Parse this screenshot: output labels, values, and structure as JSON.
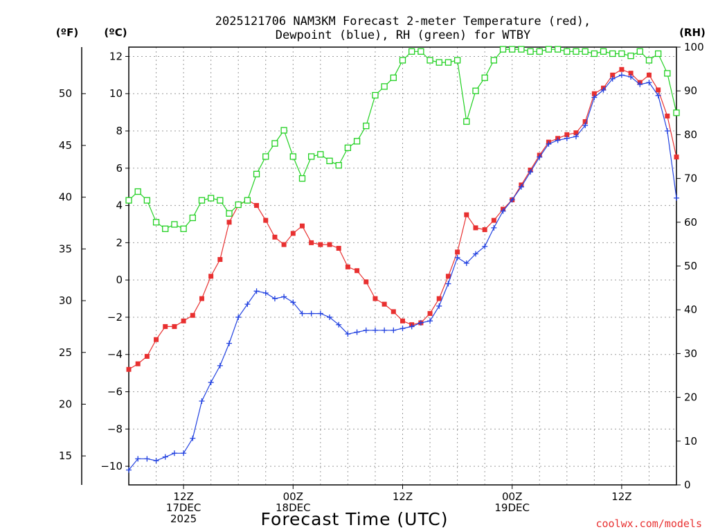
{
  "chart_data": {
    "type": "line",
    "title_line1": "2025121706 NAM3KM Forecast 2-meter Temperature (red),",
    "title_line2": "Dewpoint (blue), RH (green) for WTBY",
    "unit_f": "(ºF)",
    "unit_c": "(ºC)",
    "unit_rh": "(RH)",
    "xlabel": "Forecast Time (UTC)",
    "credit": "coolwx.com/models",
    "celsius_range": [
      -11.0,
      12.5
    ],
    "rh_range": [
      0,
      100
    ],
    "hours_range": [
      0,
      60
    ],
    "celsius_ticks": [
      "−10",
      "−8",
      "−6",
      "−4",
      "−2",
      "0",
      "2",
      "4",
      "6",
      "8",
      "10",
      "12"
    ],
    "fahrenheit_ticks": [
      "15",
      "20",
      "25",
      "30",
      "35",
      "40",
      "45",
      "50"
    ],
    "rh_ticks": [
      "0",
      "10",
      "20",
      "30",
      "40",
      "50",
      "60",
      "70",
      "80",
      "90",
      "100"
    ],
    "x_ticks": [
      {
        "hour": 6,
        "lines": [
          "12Z",
          "17DEC",
          "2025"
        ]
      },
      {
        "hour": 18,
        "lines": [
          "00Z",
          "18DEC"
        ]
      },
      {
        "hour": 30,
        "lines": [
          "12Z"
        ]
      },
      {
        "hour": 42,
        "lines": [
          "00Z",
          "19DEC"
        ]
      },
      {
        "hour": 54,
        "lines": [
          "12Z"
        ]
      }
    ],
    "series": [
      {
        "name": "Temperature",
        "color": "#e83030",
        "marker": "square-filled",
        "units": "°C",
        "values": [
          -4.8,
          -4.5,
          -4.1,
          -3.2,
          -2.5,
          -2.5,
          -2.2,
          -1.9,
          -1.0,
          0.2,
          1.1,
          3.1,
          4.0,
          4.3,
          4.0,
          3.2,
          2.3,
          1.9,
          2.5,
          2.9,
          2.0,
          1.9,
          1.9,
          1.7,
          0.7,
          0.5,
          -0.1,
          -1.0,
          -1.3,
          -1.7,
          -2.2,
          -2.4,
          -2.3,
          -1.8,
          -1.0,
          0.2,
          1.5,
          3.5,
          2.8,
          2.7,
          3.2,
          3.8,
          4.3,
          5.1,
          5.9,
          6.7,
          7.4,
          7.6,
          7.8,
          7.9,
          8.5,
          10.0,
          10.3,
          11.0,
          11.3,
          11.1,
          10.6,
          11.0,
          10.2,
          8.8,
          6.6
        ]
      },
      {
        "name": "Dewpoint",
        "color": "#2040e0",
        "marker": "plus",
        "units": "°C",
        "values": [
          -10.2,
          -9.6,
          -9.6,
          -9.7,
          -9.5,
          -9.3,
          -9.3,
          -8.5,
          -6.5,
          -5.5,
          -4.6,
          -3.4,
          -2.0,
          -1.3,
          -0.6,
          -0.7,
          -1.0,
          -0.9,
          -1.2,
          -1.8,
          -1.8,
          -1.8,
          -2.0,
          -2.4,
          -2.9,
          -2.8,
          -2.7,
          -2.7,
          -2.7,
          -2.7,
          -2.6,
          -2.5,
          -2.3,
          -2.2,
          -1.4,
          -0.2,
          1.2,
          0.9,
          1.4,
          1.8,
          2.8,
          3.7,
          4.3,
          5.0,
          5.8,
          6.6,
          7.3,
          7.5,
          7.6,
          7.7,
          8.3,
          9.8,
          10.2,
          10.8,
          11.0,
          10.9,
          10.5,
          10.6,
          9.9,
          8.0,
          4.4
        ]
      },
      {
        "name": "RH",
        "color": "#20d020",
        "marker": "square-open",
        "units": "%",
        "values": [
          65,
          67,
          65,
          60,
          58.5,
          59.5,
          58.5,
          61,
          65,
          65.5,
          65,
          62,
          64,
          65,
          71,
          75,
          78,
          81,
          75,
          70,
          75,
          75.5,
          74,
          73,
          77,
          78.5,
          82,
          89,
          91,
          93,
          97,
          99,
          99,
          97,
          96.5,
          96.5,
          97,
          83,
          90,
          93,
          97,
          99.5,
          99.5,
          99.5,
          99,
          99,
          99.5,
          99.5,
          99,
          99,
          99,
          98.5,
          99,
          98.5,
          98.5,
          98,
          99,
          97,
          98.5,
          94,
          85
        ]
      }
    ]
  }
}
